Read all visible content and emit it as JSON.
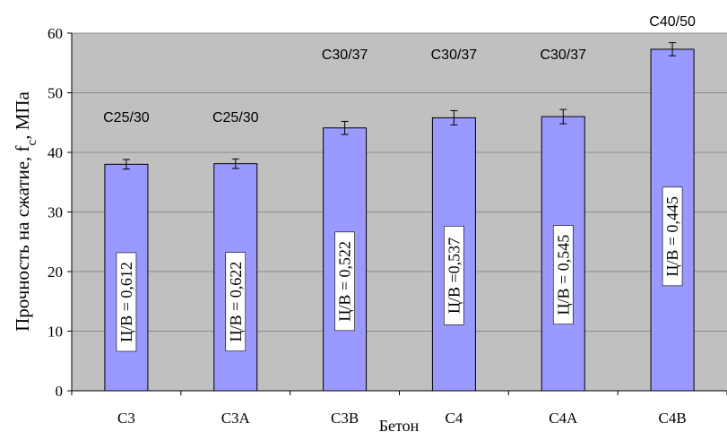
{
  "chart_data": {
    "type": "bar",
    "ylabel": "Прочность на сжатие, f",
    "ylabel_sub": "c",
    "ylabel_unit": ", МПа",
    "xlabel": "Бетон",
    "ylim": [
      0,
      60
    ],
    "yticks": [
      0,
      10,
      20,
      30,
      40,
      50,
      60
    ],
    "grid": true,
    "categories": [
      "C3",
      "C3A",
      "C3B",
      "C4",
      "C4A",
      "C4B"
    ],
    "values": [
      38.0,
      38.1,
      44.1,
      45.8,
      46.0,
      57.3
    ],
    "error": [
      0.8,
      0.8,
      1.1,
      1.2,
      1.2,
      1.1
    ],
    "strength_class": [
      "C25/30",
      "C25/30",
      "C30/37",
      "C30/37",
      "C30/37",
      "C40/50"
    ],
    "ratio_labels": [
      "Ц/В = 0,612",
      "Ц/В = 0,622",
      "Ц/В = 0,522",
      "Ц/В =0,537",
      "Ц/В = 0,545",
      "Ц/В = 0,445"
    ],
    "colors": {
      "plot_bg": "#c0c0c0",
      "bar_fill": "#9999ff",
      "bar_stroke": "#000000",
      "grid": "#8c8c8c",
      "label_box": "#ffffff"
    }
  }
}
